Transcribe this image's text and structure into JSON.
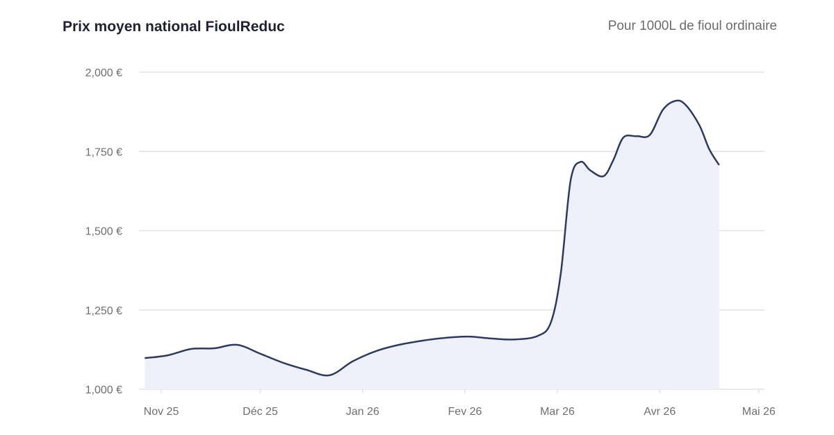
{
  "header": {
    "title": "Prix moyen national FioulReduc",
    "subtitle": "Pour 1000L de fioul ordinaire"
  },
  "chart_data": {
    "type": "area",
    "title": "Prix moyen national FioulReduc",
    "subtitle": "Pour 1000L de fioul ordinaire",
    "xlabel": "",
    "ylabel": "",
    "ylim": [
      1000,
      2000
    ],
    "yticks": [
      1000,
      1250,
      1500,
      1750,
      2000
    ],
    "ytick_labels": [
      "1,000 €",
      "1,250 €",
      "1,500 €",
      "1,750 €",
      "2,000 €"
    ],
    "xticks": [
      {
        "date": "2025-11-01",
        "label": "Nov 25"
      },
      {
        "date": "2025-12-01",
        "label": "Déc 25"
      },
      {
        "date": "2026-01-01",
        "label": "Jan 26"
      },
      {
        "date": "2026-02-01",
        "label": "Fev 26"
      },
      {
        "date": "2026-03-01",
        "label": "Mar 26"
      },
      {
        "date": "2026-04-01",
        "label": "Avr 26"
      },
      {
        "date": "2026-05-01",
        "label": "Mai 26"
      }
    ],
    "grid": true,
    "colors": {
      "line": "#2d3a5e",
      "fill": "#eef1f9",
      "grid": "#e2e2e2"
    },
    "series": [
      {
        "points": [
          [
            "2025-10-27",
            1098
          ],
          [
            "2025-11-03",
            1107
          ],
          [
            "2025-11-10",
            1127
          ],
          [
            "2025-11-17",
            1129
          ],
          [
            "2025-11-24",
            1140
          ],
          [
            "2025-12-01",
            1112
          ],
          [
            "2025-12-08",
            1083
          ],
          [
            "2025-12-15",
            1061
          ],
          [
            "2025-12-22",
            1044
          ],
          [
            "2025-12-29",
            1088
          ],
          [
            "2026-01-05",
            1120
          ],
          [
            "2026-01-12",
            1140
          ],
          [
            "2026-01-19",
            1153
          ],
          [
            "2026-01-26",
            1162
          ],
          [
            "2026-02-02",
            1166
          ],
          [
            "2026-02-09",
            1160
          ],
          [
            "2026-02-16",
            1157
          ],
          [
            "2026-02-23",
            1168
          ],
          [
            "2026-02-27",
            1210
          ],
          [
            "2026-03-02",
            1363
          ],
          [
            "2026-03-05",
            1658
          ],
          [
            "2026-03-08",
            1717
          ],
          [
            "2026-03-11",
            1690
          ],
          [
            "2026-03-15",
            1672
          ],
          [
            "2026-03-18",
            1724
          ],
          [
            "2026-03-21",
            1794
          ],
          [
            "2026-03-25",
            1798
          ],
          [
            "2026-03-29",
            1802
          ],
          [
            "2026-04-02",
            1882
          ],
          [
            "2026-04-06",
            1910
          ],
          [
            "2026-04-09",
            1895
          ],
          [
            "2026-04-13",
            1833
          ],
          [
            "2026-04-16",
            1757
          ],
          [
            "2026-04-19",
            1707
          ]
        ]
      }
    ]
  }
}
